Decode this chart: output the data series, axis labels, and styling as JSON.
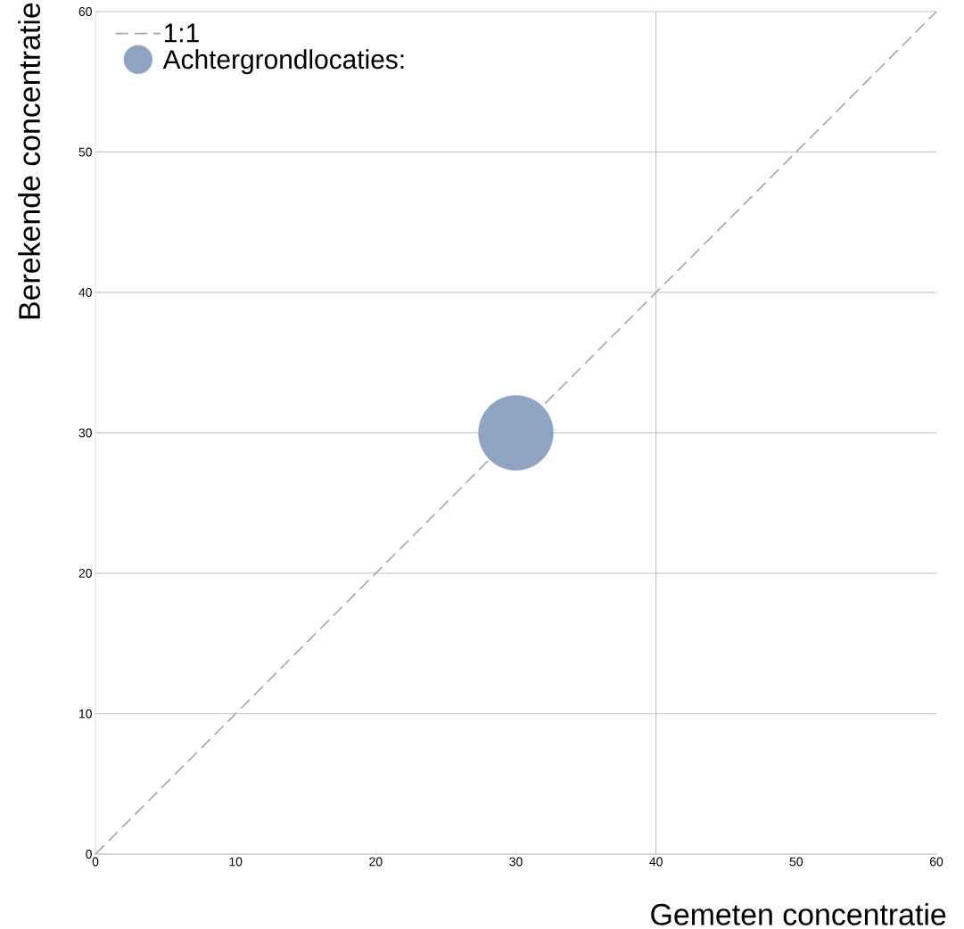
{
  "chart_data": {
    "type": "scatter",
    "xlabel": "Gemeten concentratie",
    "ylabel": "Berekende concentratie",
    "xlim": [
      0,
      60
    ],
    "ylim": [
      0,
      60
    ],
    "xticks": [
      0,
      10,
      20,
      30,
      40,
      50,
      60
    ],
    "yticks": [
      0,
      10,
      20,
      30,
      40,
      50,
      60
    ],
    "grid": "y",
    "legend": "top left",
    "series": [
      {
        "name": "1:1",
        "type": "line",
        "x": [
          0,
          60
        ],
        "values": [
          0,
          60
        ],
        "color": "#a6a6a6",
        "line_style": "dashed",
        "marker": "none"
      },
      {
        "name": "Achtergrondlocaties:",
        "x": [
          30
        ],
        "values": [
          30
        ],
        "color": "#8fa3c2",
        "marker": "circle"
      }
    ],
    "ref_lines": [
      {
        "axis": "x",
        "value": 40,
        "color": "#a6a6a6"
      }
    ]
  }
}
